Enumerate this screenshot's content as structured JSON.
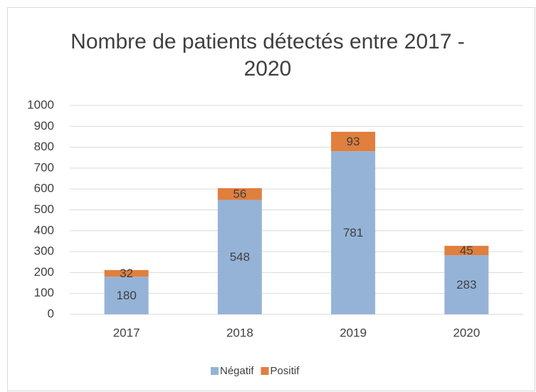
{
  "chart_data": {
    "type": "stacked_bar",
    "title": "Nombre de patients détectés entre 2017 - 2020",
    "categories": [
      "2017",
      "2018",
      "2019",
      "2020"
    ],
    "series": [
      {
        "name": "Négatif",
        "color": "#95b3d7",
        "values": [
          180,
          548,
          781,
          283
        ]
      },
      {
        "name": "Positif",
        "color": "#e07f3e",
        "values": [
          32,
          56,
          93,
          45
        ]
      }
    ],
    "ylim": [
      0,
      1000
    ],
    "yticks": [
      0,
      100,
      200,
      300,
      400,
      500,
      600,
      700,
      800,
      900,
      1000
    ],
    "grid": true,
    "legend": "bottom"
  }
}
